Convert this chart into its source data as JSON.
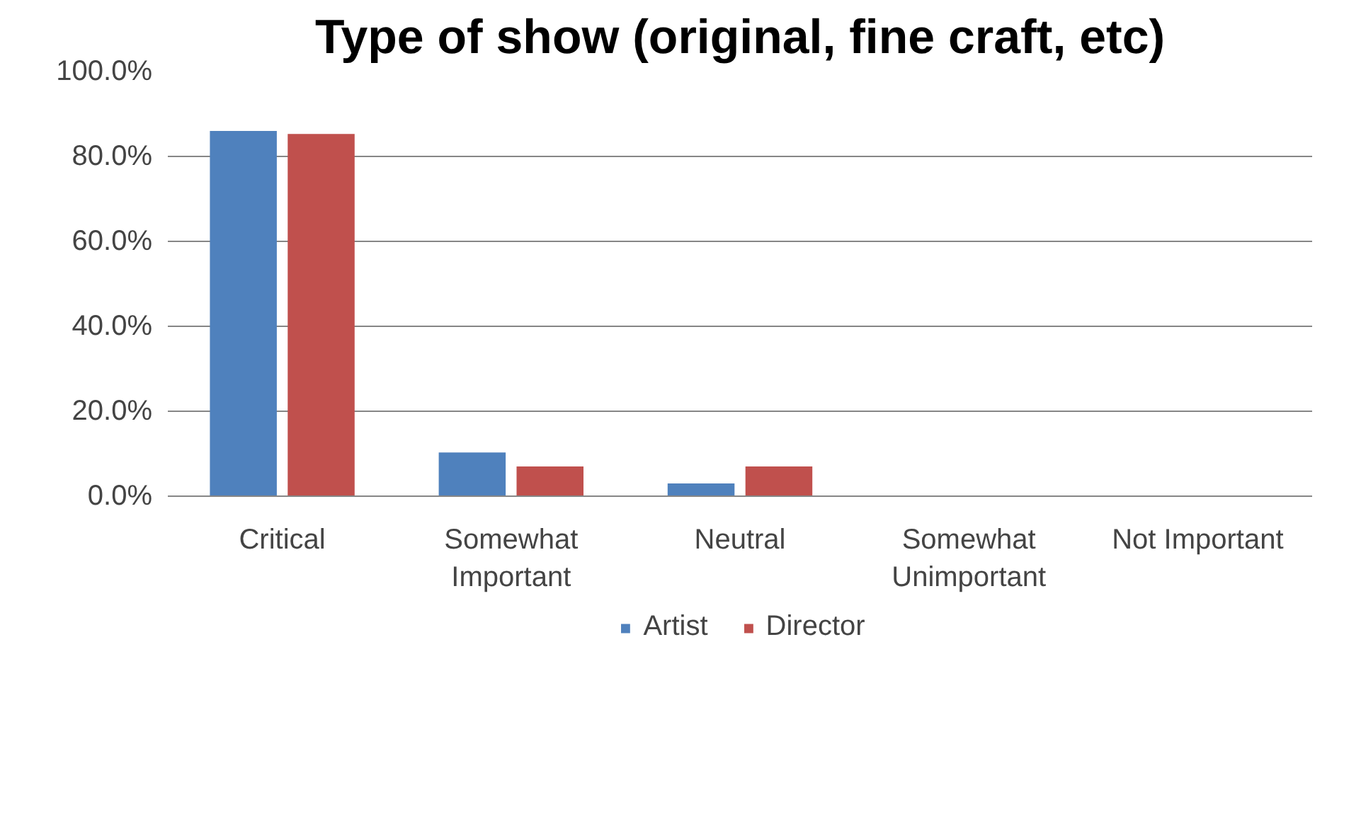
{
  "chart_data": {
    "type": "bar",
    "title": "Type of show (original, fine craft, etc)",
    "categories": [
      "Critical",
      "Somewhat Important",
      "Neutral",
      "Somewhat Unimportant",
      "Not Important"
    ],
    "series": [
      {
        "name": "Artist",
        "color": "#4f81bd",
        "values": [
          86.0,
          10.3,
          3.0,
          0,
          0
        ]
      },
      {
        "name": "Director",
        "color": "#c0504d",
        "values": [
          85.3,
          7.0,
          7.0,
          0,
          0
        ]
      }
    ],
    "ylim": [
      0,
      100
    ],
    "yticks": [
      {
        "value": 0,
        "label": "0.0%"
      },
      {
        "value": 20,
        "label": "20.0%"
      },
      {
        "value": 40,
        "label": "40.0%"
      },
      {
        "value": 60,
        "label": "60.0%"
      },
      {
        "value": 80,
        "label": "80.0%"
      },
      {
        "value": 100,
        "label": "100.0%"
      }
    ],
    "grid": "y",
    "legend": "bottom"
  }
}
